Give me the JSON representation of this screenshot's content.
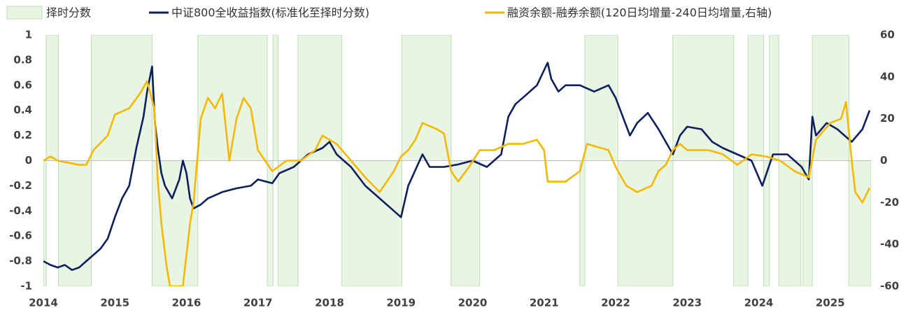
{
  "chart_data": {
    "type": "combo",
    "xlim": [
      2014,
      2025.57
    ],
    "xticks": [
      2014,
      2015,
      2016,
      2017,
      2018,
      2019,
      2020,
      2021,
      2022,
      2023,
      2024,
      2025
    ],
    "ylim": [
      -1,
      1
    ],
    "yticks": [
      -1,
      -0.8,
      -0.6,
      -0.4,
      -0.2,
      0,
      0.2,
      0.4,
      0.6,
      0.8,
      1
    ],
    "y2lim": [
      -60,
      60
    ],
    "y2ticks": [
      -60,
      -40,
      -20,
      0,
      20,
      40,
      60
    ],
    "series": [
      {
        "name": "择时分数",
        "kind": "step-area",
        "color": "#e9f5e3",
        "edge_color": "#bcdcb5",
        "bins": [
          2014.0,
          2014.04,
          2014.21,
          2014.67,
          2015.52,
          2016.16,
          2017.13,
          2017.21,
          2017.28,
          2017.56,
          2018.17,
          2019.01,
          2019.7,
          2020.1,
          2021.5,
          2021.57,
          2022.03,
          2022.8,
          2023.65,
          2023.85,
          2024.07,
          2024.15,
          2024.28,
          2024.59,
          2024.62,
          2024.75,
          2025.26,
          2025.57
        ],
        "values": [
          -1,
          1,
          -1,
          1,
          -1,
          1,
          -1,
          1,
          -1,
          1,
          -1,
          1,
          -1,
          0,
          -1,
          1,
          -1,
          1,
          -1,
          1,
          -1,
          1,
          -1,
          0,
          -1,
          1,
          -1
        ]
      },
      {
        "name": "中证800全收益指数(标准化至择时分数)",
        "kind": "line",
        "color": "#0d1f5c",
        "x": [
          2014.0,
          2014.1,
          2014.2,
          2014.3,
          2014.4,
          2014.5,
          2014.6,
          2014.7,
          2014.8,
          2014.9,
          2015.0,
          2015.1,
          2015.2,
          2015.3,
          2015.4,
          2015.45,
          2015.52,
          2015.56,
          2015.6,
          2015.65,
          2015.7,
          2015.8,
          2015.9,
          2015.95,
          2016.0,
          2016.05,
          2016.1,
          2016.2,
          2016.3,
          2016.5,
          2016.7,
          2016.9,
          2017.0,
          2017.2,
          2017.3,
          2017.5,
          2017.7,
          2017.9,
          2018.0,
          2018.1,
          2018.3,
          2018.5,
          2018.7,
          2018.9,
          2019.0,
          2019.1,
          2019.3,
          2019.4,
          2019.6,
          2019.8,
          2020.0,
          2020.2,
          2020.4,
          2020.5,
          2020.6,
          2020.7,
          2020.9,
          2021.05,
          2021.1,
          2021.2,
          2021.3,
          2021.5,
          2021.7,
          2021.9,
          2022.0,
          2022.1,
          2022.2,
          2022.3,
          2022.45,
          2022.6,
          2022.8,
          2022.9,
          2023.0,
          2023.2,
          2023.35,
          2023.5,
          2023.7,
          2023.9,
          2024.05,
          2024.2,
          2024.4,
          2024.6,
          2024.7,
          2024.75,
          2024.8,
          2024.95,
          2025.1,
          2025.3,
          2025.45,
          2025.55
        ],
        "values": [
          -0.8,
          -0.83,
          -0.85,
          -0.83,
          -0.87,
          -0.85,
          -0.8,
          -0.75,
          -0.7,
          -0.62,
          -0.45,
          -0.3,
          -0.2,
          0.1,
          0.35,
          0.55,
          0.75,
          0.3,
          0.1,
          -0.1,
          -0.2,
          -0.3,
          -0.15,
          0,
          -0.1,
          -0.3,
          -0.38,
          -0.35,
          -0.3,
          -0.25,
          -0.22,
          -0.2,
          -0.15,
          -0.18,
          -0.1,
          -0.05,
          0.05,
          0.1,
          0.15,
          0.05,
          -0.05,
          -0.2,
          -0.3,
          -0.4,
          -0.45,
          -0.2,
          0.05,
          -0.05,
          -0.05,
          -0.03,
          0,
          -0.05,
          0.05,
          0.35,
          0.45,
          0.5,
          0.6,
          0.78,
          0.65,
          0.55,
          0.6,
          0.6,
          0.55,
          0.6,
          0.5,
          0.35,
          0.2,
          0.3,
          0.38,
          0.25,
          0.05,
          0.2,
          0.27,
          0.25,
          0.15,
          0.1,
          0.05,
          0,
          -0.2,
          0.05,
          0.05,
          -0.05,
          -0.15,
          0.35,
          0.2,
          0.3,
          0.25,
          0.15,
          0.25,
          0.4
        ]
      },
      {
        "name": "融资余额-融券余额(120日均增量-240日均增量,右轴)",
        "kind": "line",
        "axis": "y2",
        "color": "#f5b800",
        "x": [
          2014.0,
          2014.1,
          2014.2,
          2014.5,
          2014.6,
          2014.7,
          2014.9,
          2015.0,
          2015.2,
          2015.35,
          2015.45,
          2015.55,
          2015.6,
          2015.65,
          2015.72,
          2015.77,
          2015.95,
          2016.05,
          2016.1,
          2016.2,
          2016.3,
          2016.4,
          2016.5,
          2016.6,
          2016.7,
          2016.8,
          2016.9,
          2017.0,
          2017.2,
          2017.4,
          2017.6,
          2017.8,
          2017.9,
          2018.1,
          2018.3,
          2018.5,
          2018.7,
          2018.9,
          2019.0,
          2019.1,
          2019.2,
          2019.3,
          2019.5,
          2019.6,
          2019.7,
          2019.8,
          2019.95,
          2020.1,
          2020.3,
          2020.5,
          2020.7,
          2020.9,
          2021.0,
          2021.05,
          2021.3,
          2021.5,
          2021.6,
          2021.7,
          2021.9,
          2022.0,
          2022.15,
          2022.3,
          2022.5,
          2022.6,
          2022.7,
          2022.8,
          2022.9,
          2023.0,
          2023.3,
          2023.5,
          2023.7,
          2023.9,
          2024.1,
          2024.3,
          2024.5,
          2024.7,
          2024.8,
          2025.0,
          2025.15,
          2025.22,
          2025.3,
          2025.35,
          2025.45,
          2025.55
        ],
        "values": [
          0,
          2,
          0,
          -2,
          -2,
          5,
          12,
          22,
          25,
          32,
          38,
          25,
          -10,
          -30,
          -50,
          -60,
          -60,
          -30,
          -20,
          20,
          30,
          25,
          32,
          0,
          20,
          30,
          25,
          5,
          -5,
          0,
          0,
          5,
          12,
          8,
          0,
          -8,
          -15,
          -5,
          2,
          5,
          10,
          18,
          15,
          13,
          -5,
          -10,
          -3,
          5,
          5,
          8,
          8,
          10,
          5,
          -10,
          -10,
          -5,
          8,
          7,
          5,
          -3,
          -12,
          -15,
          -12,
          -5,
          -2,
          5,
          8,
          5,
          5,
          3,
          -2,
          3,
          2,
          0,
          -5,
          -8,
          10,
          18,
          20,
          28,
          0,
          -15,
          -20,
          -13
        ]
      }
    ]
  }
}
